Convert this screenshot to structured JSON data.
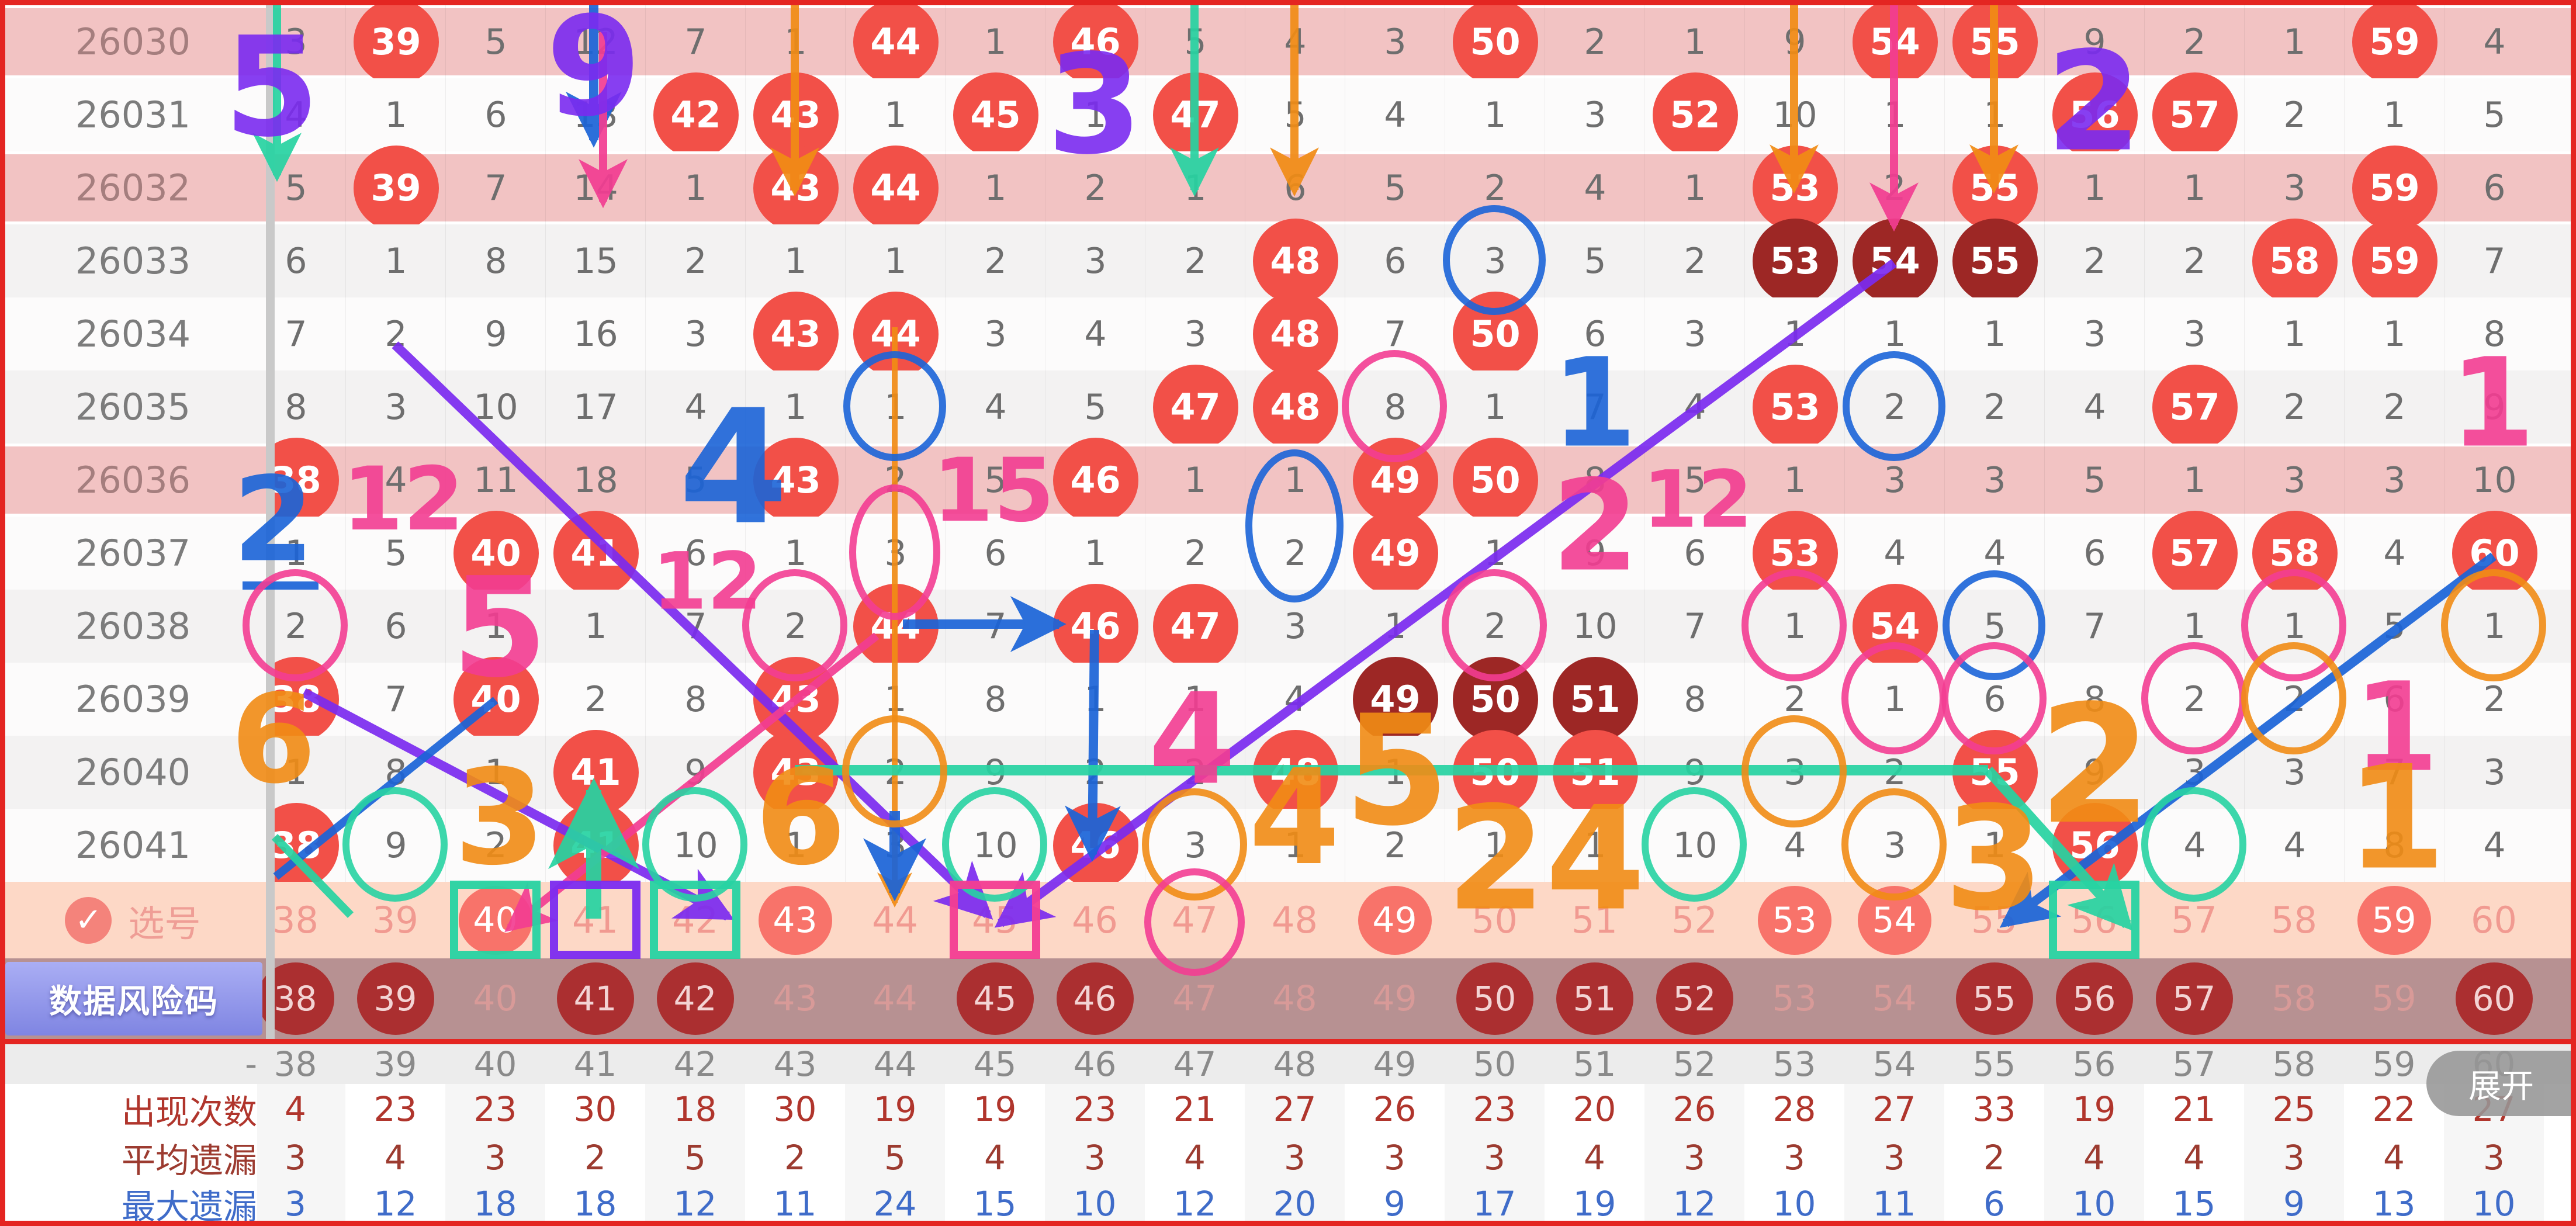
{
  "columns": [
    "38",
    "39",
    "40",
    "41",
    "42",
    "43",
    "44",
    "45",
    "46",
    "47",
    "48",
    "49",
    "50",
    "51",
    "52",
    "53",
    "54",
    "55",
    "56",
    "57",
    "58",
    "59",
    "60"
  ],
  "colors": {
    "red": "#f25048",
    "dark": "#9d2725",
    "purple": "#7b2bf0",
    "blue": "#1b64d8",
    "pink": "#f33d92",
    "orange": "#f18c15",
    "teal": "#27d3a2",
    "rowPink": "#f2c3c3",
    "rowGrey": "#f3f2f2",
    "rowWhite": "#fcfbfb",
    "xuanhaoBg": "#fdd8c6",
    "riskBg": "#b79192"
  },
  "main": {
    "rows": [
      {
        "period": "26030",
        "bg": "pink",
        "cells": [
          "3",
          "39R",
          "5",
          "12",
          "7",
          "1",
          "44R",
          "1",
          "46R",
          "5",
          "4",
          "3",
          "50R",
          "2",
          "1",
          "9",
          "54R",
          "55R",
          "9",
          "2",
          "1",
          "59R",
          "4"
        ]
      },
      {
        "period": "26031",
        "bg": "white",
        "cells": [
          "4",
          "1",
          "6",
          "13",
          "42R",
          "43R",
          "1",
          "45R",
          "1",
          "47R",
          "5",
          "4",
          "1",
          "3",
          "52R",
          "10",
          "1",
          "1",
          "56R",
          "57R",
          "2",
          "1",
          "5"
        ]
      },
      {
        "period": "26032",
        "bg": "pink",
        "cells": [
          "5",
          "39R",
          "7",
          "14",
          "1",
          "43R",
          "44R",
          "1",
          "2",
          "1",
          "6",
          "5",
          "2",
          "4",
          "1",
          "53R",
          "2",
          "55R",
          "1",
          "1",
          "3",
          "59R",
          "6"
        ]
      },
      {
        "period": "26033",
        "bg": "grey",
        "cells": [
          "6",
          "1",
          "8",
          "15",
          "2",
          "1",
          "1",
          "2",
          "3",
          "2",
          "48R",
          "6",
          "3",
          "5",
          "2",
          "53D",
          "54D",
          "55D",
          "2",
          "2",
          "58R",
          "59R",
          "7"
        ]
      },
      {
        "period": "26034",
        "bg": "white",
        "cells": [
          "7",
          "2",
          "9",
          "16",
          "3",
          "43R",
          "44R",
          "3",
          "4",
          "3",
          "48R",
          "7",
          "50R",
          "6",
          "3",
          "1",
          "1",
          "1",
          "3",
          "3",
          "1",
          "1",
          "8"
        ]
      },
      {
        "period": "26035",
        "bg": "grey",
        "cells": [
          "8",
          "3",
          "10",
          "17",
          "4",
          "1",
          "1",
          "4",
          "5",
          "47R",
          "48R",
          "8",
          "1",
          "7",
          "4",
          "53R",
          "2",
          "2",
          "4",
          "57R",
          "2",
          "2",
          "9"
        ]
      },
      {
        "period": "26036",
        "bg": "pink",
        "cells": [
          "38R",
          "4",
          "11",
          "18",
          "5",
          "43R",
          "2",
          "5",
          "46R",
          "1",
          "1",
          "49R",
          "50R",
          "8",
          "5",
          "1",
          "3",
          "3",
          "5",
          "1",
          "3",
          "3",
          "10"
        ]
      },
      {
        "period": "26037",
        "bg": "white",
        "cells": [
          "1",
          "5",
          "40R",
          "41R",
          "6",
          "1",
          "3",
          "6",
          "1",
          "2",
          "2",
          "49R",
          "1",
          "9",
          "6",
          "53R",
          "4",
          "4",
          "6",
          "57R",
          "58R",
          "4",
          "60R"
        ]
      },
      {
        "period": "26038",
        "bg": "grey",
        "cells": [
          "2",
          "6",
          "1",
          "1",
          "7",
          "2",
          "44R",
          "7",
          "46R",
          "47R",
          "3",
          "1",
          "2",
          "10",
          "7",
          "1",
          "54R",
          "5",
          "7",
          "1",
          "1",
          "5",
          "1"
        ]
      },
      {
        "period": "26039",
        "bg": "white",
        "cells": [
          "38R",
          "7",
          "40R",
          "2",
          "8",
          "43R",
          "1",
          "8",
          "1",
          "1",
          "4",
          "49D",
          "50D",
          "51D",
          "8",
          "2",
          "1",
          "6",
          "8",
          "2",
          "2",
          "6",
          "2"
        ]
      },
      {
        "period": "26040",
        "bg": "grey",
        "cells": [
          "1",
          "8",
          "1",
          "41R",
          "9",
          "43R",
          "2",
          "9",
          "2",
          "2",
          "48R",
          "1",
          "50R",
          "51R",
          "9",
          "3",
          "2",
          "55R",
          "9",
          "3",
          "3",
          "7",
          "3"
        ]
      },
      {
        "period": "26041",
        "bg": "white",
        "cells": [
          "38R",
          "9",
          "2",
          "41R",
          "10",
          "1",
          "3",
          "10",
          "46R",
          "3",
          "1",
          "2",
          "1",
          "1",
          "10",
          "4",
          "3",
          "1",
          "56R",
          "4",
          "4",
          "8",
          "4"
        ]
      }
    ]
  },
  "xuanhao": {
    "label": "选号",
    "check": "✓",
    "numbers": [
      {
        "n": "38"
      },
      {
        "n": "39"
      },
      {
        "n": "40",
        "sel": true
      },
      {
        "n": "41"
      },
      {
        "n": "42"
      },
      {
        "n": "43",
        "sel": true
      },
      {
        "n": "44"
      },
      {
        "n": "45"
      },
      {
        "n": "46"
      },
      {
        "n": "47"
      },
      {
        "n": "48"
      },
      {
        "n": "49",
        "sel": true
      },
      {
        "n": "50"
      },
      {
        "n": "51"
      },
      {
        "n": "52"
      },
      {
        "n": "53",
        "sel": true
      },
      {
        "n": "54",
        "sel": true
      },
      {
        "n": "55"
      },
      {
        "n": "56"
      },
      {
        "n": "57"
      },
      {
        "n": "58"
      },
      {
        "n": "59",
        "sel": true
      },
      {
        "n": "60"
      }
    ]
  },
  "fengxianma": {
    "label": "数据风险码",
    "numbers": [
      {
        "n": "38",
        "c": true
      },
      {
        "n": "39",
        "c": true
      },
      {
        "n": "40"
      },
      {
        "n": "41",
        "c": true
      },
      {
        "n": "42",
        "c": true
      },
      {
        "n": "43"
      },
      {
        "n": "44"
      },
      {
        "n": "45",
        "c": true
      },
      {
        "n": "46",
        "c": true
      },
      {
        "n": "47"
      },
      {
        "n": "48"
      },
      {
        "n": "49"
      },
      {
        "n": "50",
        "c": true
      },
      {
        "n": "51",
        "c": true
      },
      {
        "n": "52",
        "c": true
      },
      {
        "n": "53"
      },
      {
        "n": "54"
      },
      {
        "n": "55",
        "c": true
      },
      {
        "n": "56",
        "c": true
      },
      {
        "n": "57",
        "c": true
      },
      {
        "n": "58"
      },
      {
        "n": "59"
      },
      {
        "n": "60",
        "c": true
      }
    ]
  },
  "stats": {
    "expand": "展开",
    "header": {
      "label": "-",
      "values": [
        "38",
        "39",
        "40",
        "41",
        "42",
        "43",
        "44",
        "45",
        "46",
        "47",
        "48",
        "49",
        "50",
        "51",
        "52",
        "53",
        "54",
        "55",
        "56",
        "57",
        "58",
        "59",
        "60"
      ]
    },
    "rows": [
      {
        "label": "出现次数",
        "color": "#b0352c",
        "values": [
          "4",
          "23",
          "23",
          "30",
          "18",
          "30",
          "19",
          "19",
          "23",
          "21",
          "27",
          "26",
          "23",
          "20",
          "26",
          "28",
          "27",
          "33",
          "19",
          "21",
          "25",
          "22",
          "27"
        ]
      },
      {
        "label": "平均遗漏",
        "color": "#9c3b30",
        "values": [
          "3",
          "4",
          "3",
          "2",
          "5",
          "2",
          "5",
          "4",
          "3",
          "4",
          "3",
          "3",
          "3",
          "4",
          "3",
          "3",
          "3",
          "2",
          "4",
          "4",
          "3",
          "4",
          "3"
        ]
      },
      {
        "label": "最大遗漏",
        "color": "#3f6cc9",
        "values": [
          "3",
          "12",
          "18",
          "18",
          "12",
          "11",
          "24",
          "15",
          "10",
          "12",
          "20",
          "9",
          "17",
          "19",
          "12",
          "10",
          "11",
          "6",
          "10",
          "15",
          "9",
          "13",
          "10"
        ]
      }
    ]
  },
  "annotations": {
    "glyphs": [
      [
        "5",
        465,
        150,
        235,
        "purple"
      ],
      [
        "9",
        1016,
        115,
        235,
        "purple"
      ],
      [
        "3",
        1873,
        180,
        235,
        "purple"
      ],
      [
        "2",
        3583,
        175,
        235,
        "purple"
      ],
      [
        "2",
        468,
        890,
        200,
        "blue"
      ],
      [
        "4",
        1255,
        800,
        270,
        "blue"
      ],
      [
        "1",
        2728,
        690,
        210,
        "blue"
      ],
      [
        "12",
        690,
        855,
        150,
        "pink"
      ],
      [
        "5",
        855,
        1075,
        235,
        "pink"
      ],
      [
        "12",
        1210,
        995,
        135,
        "pink"
      ],
      [
        "15",
        1700,
        840,
        150,
        "pink"
      ],
      [
        "2",
        2730,
        900,
        215,
        "pink"
      ],
      [
        "12",
        2905,
        855,
        135,
        "pink"
      ],
      [
        "1",
        4265,
        690,
        210,
        "pink"
      ],
      [
        "4",
        2040,
        1265,
        215,
        "pink"
      ],
      [
        "1",
        4100,
        1245,
        210,
        "pink"
      ],
      [
        "6",
        468,
        1265,
        210,
        "orange"
      ],
      [
        "3",
        855,
        1400,
        225,
        "orange"
      ],
      [
        "6",
        1370,
        1400,
        225,
        "orange"
      ],
      [
        "4",
        2215,
        1400,
        225,
        "orange"
      ],
      [
        "5",
        2390,
        1320,
        260,
        "orange"
      ],
      [
        "2",
        2560,
        1470,
        245,
        "orange"
      ],
      [
        "4",
        2730,
        1470,
        245,
        "orange"
      ],
      [
        "3",
        3412,
        1470,
        245,
        "orange"
      ],
      [
        "2",
        3585,
        1310,
        280,
        "orange"
      ],
      [
        "1",
        4100,
        1400,
        245,
        "orange"
      ]
    ],
    "lines": [
      [
        474,
        9,
        474,
        300,
        "teal",
        14,
        1
      ],
      [
        1016,
        9,
        1016,
        240,
        "blue",
        16,
        1
      ],
      [
        1032,
        55,
        1032,
        345,
        "pink",
        14,
        1
      ],
      [
        1360,
        9,
        1360,
        325,
        "orange",
        14,
        1
      ],
      [
        2044,
        9,
        2044,
        325,
        "teal",
        14,
        1
      ],
      [
        2215,
        9,
        2215,
        325,
        "orange",
        14,
        1
      ],
      [
        3070,
        9,
        3070,
        320,
        "orange",
        14,
        1
      ],
      [
        3241,
        9,
        3241,
        385,
        "pink",
        14,
        1
      ],
      [
        3412,
        9,
        3412,
        320,
        "orange",
        14,
        1
      ],
      [
        1531,
        560,
        1531,
        1545,
        "orange",
        10,
        1
      ],
      [
        676,
        590,
        1690,
        1565,
        "purple",
        16,
        1
      ],
      [
        3241,
        450,
        1712,
        1580,
        "purple",
        16,
        1
      ],
      [
        520,
        1185,
        1245,
        1568,
        "purple",
        16,
        1
      ],
      [
        1500,
        1088,
        872,
        1588,
        "pink",
        14,
        1
      ],
      [
        1545,
        1068,
        1812,
        1068,
        "blue",
        16,
        1
      ],
      [
        1873,
        1078,
        1869,
        1462,
        "blue",
        16,
        1
      ],
      [
        4267,
        952,
        3432,
        1580,
        "blue",
        16,
        1
      ],
      [
        848,
        1198,
        472,
        1500,
        "blue",
        14,
        0
      ],
      [
        1531,
        1388,
        1531,
        1528,
        "blue",
        18,
        1
      ],
      [
        1016,
        1572,
        1016,
        1352,
        "teal",
        26,
        1
      ],
      [
        1360,
        1318,
        3402,
        1318,
        "teal",
        18,
        0
      ],
      [
        3402,
        1318,
        3640,
        1582,
        "teal",
        18,
        1
      ],
      [
        470,
        1432,
        600,
        1566,
        "teal",
        14,
        0
      ],
      [
        415,
        1002,
        545,
        1002,
        "blue",
        14,
        0
      ]
    ],
    "rings": [
      [
        2557,
        445,
        82,
        88,
        "blue"
      ],
      [
        1531,
        695,
        82,
        88,
        "blue"
      ],
      [
        3241,
        695,
        82,
        88,
        "blue"
      ],
      [
        3412,
        1070,
        82,
        88,
        "blue"
      ],
      [
        2215,
        900,
        78,
        125,
        "blue"
      ],
      [
        2386,
        695,
        84,
        90,
        "pink"
      ],
      [
        1531,
        945,
        72,
        110,
        "pink"
      ],
      [
        505,
        1070,
        84,
        90,
        "pink"
      ],
      [
        1360,
        1070,
        84,
        90,
        "pink"
      ],
      [
        2557,
        1070,
        84,
        90,
        "pink"
      ],
      [
        3070,
        1070,
        84,
        90,
        "pink"
      ],
      [
        3925,
        1070,
        84,
        90,
        "pink"
      ],
      [
        3241,
        1195,
        84,
        90,
        "pink"
      ],
      [
        3412,
        1195,
        84,
        90,
        "pink"
      ],
      [
        3754,
        1195,
        84,
        90,
        "pink"
      ],
      [
        4267,
        1070,
        84,
        90,
        "orange"
      ],
      [
        3925,
        1195,
        84,
        90,
        "orange"
      ],
      [
        1531,
        1320,
        84,
        90,
        "orange"
      ],
      [
        3070,
        1320,
        84,
        90,
        "orange"
      ],
      [
        2044,
        1445,
        84,
        90,
        "orange"
      ],
      [
        3241,
        1445,
        84,
        90,
        "orange"
      ],
      [
        676,
        1445,
        84,
        92,
        "teal"
      ],
      [
        1189,
        1445,
        84,
        92,
        "teal"
      ],
      [
        1702,
        1445,
        84,
        92,
        "teal"
      ],
      [
        2899,
        1445,
        84,
        92,
        "teal"
      ],
      [
        3754,
        1445,
        84,
        92,
        "teal"
      ],
      [
        2044,
        1578,
        80,
        86,
        "pink"
      ]
    ],
    "boxes": [
      [
        777,
        1514,
        141,
        120,
        "teal"
      ],
      [
        948,
        1514,
        141,
        120,
        "purple"
      ],
      [
        1119,
        1514,
        141,
        120,
        "teal"
      ],
      [
        1632,
        1514,
        141,
        120,
        "pink"
      ],
      [
        3513,
        1514,
        141,
        120,
        "teal"
      ]
    ]
  }
}
